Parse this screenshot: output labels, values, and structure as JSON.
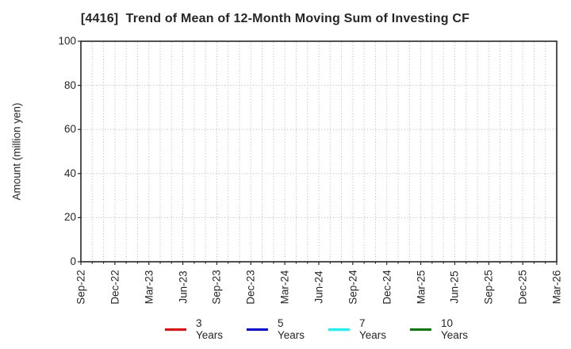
{
  "chart_data": {
    "type": "line",
    "title": "[4416]  Trend of Mean of 12-Month Moving Sum of Investing CF",
    "ylabel": "Amount (million yen)",
    "xlabel": "",
    "ylim": [
      0,
      100
    ],
    "yticks": [
      0,
      20,
      40,
      60,
      80,
      100
    ],
    "x_tick_labels": [
      "Sep-22",
      "Dec-22",
      "Mar-23",
      "Jun-23",
      "Sep-23",
      "Dec-23",
      "Mar-24",
      "Jun-24",
      "Sep-24",
      "Dec-24",
      "Mar-25",
      "Jun-25",
      "Sep-25",
      "Dec-25",
      "Mar-26"
    ],
    "x_minor_per_major": 3,
    "grid": "dotted",
    "legend_position": "bottom-center",
    "series": [
      {
        "name": "3 Years",
        "color": "#ff0000",
        "values": []
      },
      {
        "name": "5 Years",
        "color": "#0000ff",
        "values": []
      },
      {
        "name": "7 Years",
        "color": "#00ffff",
        "values": []
      },
      {
        "name": "10 Years",
        "color": "#008000",
        "values": []
      }
    ],
    "colors": {
      "text": "#262626",
      "frame": "#262626",
      "grid": "#b5b5b5",
      "background": "#ffffff"
    }
  }
}
